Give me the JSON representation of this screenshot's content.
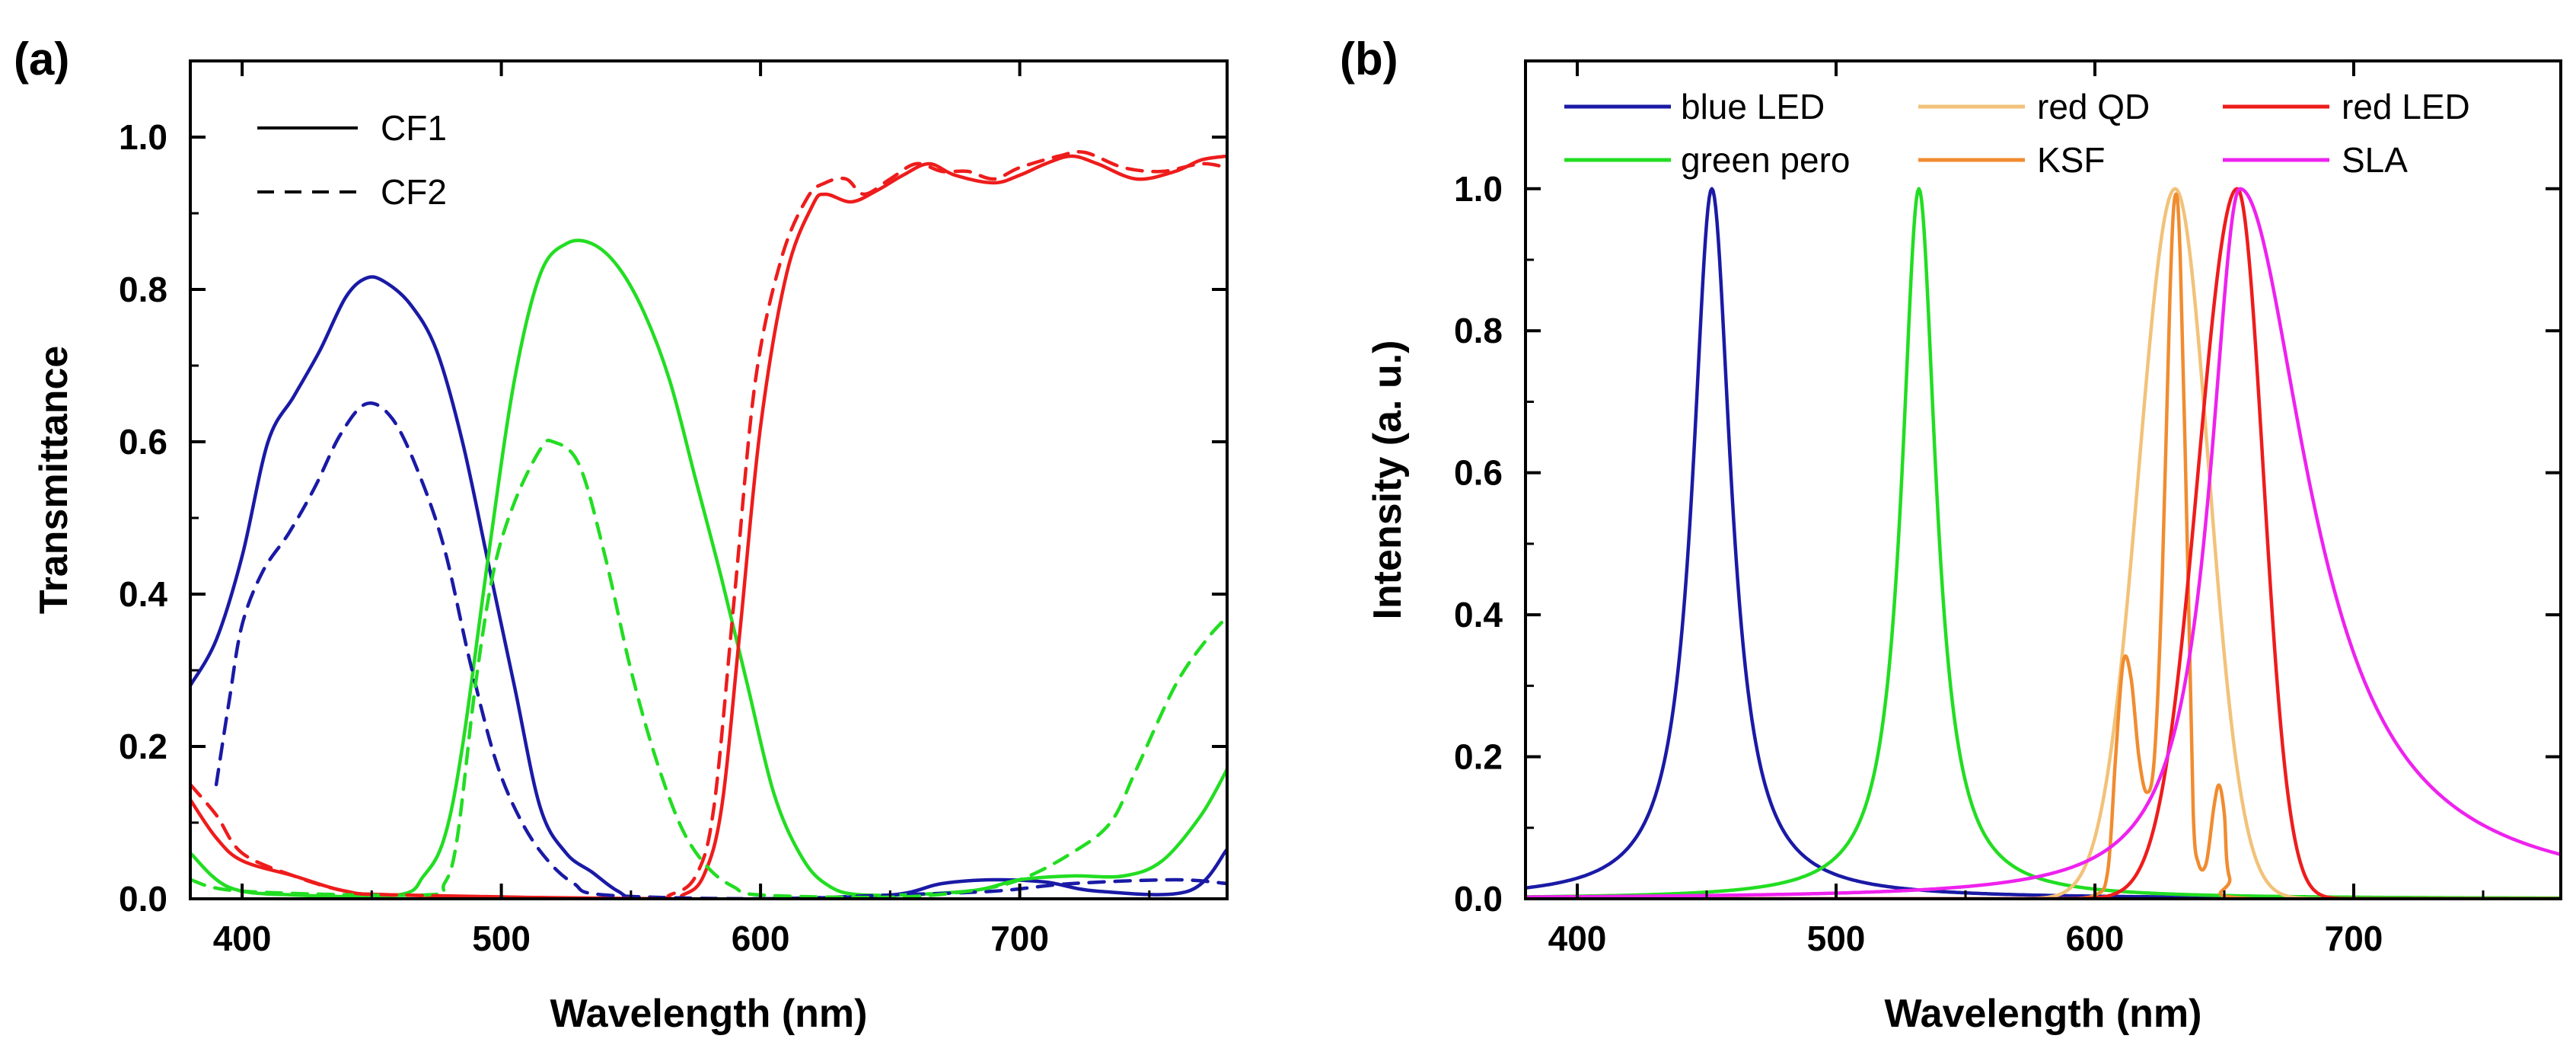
{
  "chart_data": [
    {
      "panel": "(a)",
      "type": "line",
      "xlabel": "Wavelength (nm)",
      "ylabel": "Transmittance",
      "xlim": [
        380,
        780
      ],
      "ylim": [
        0.0,
        1.1
      ],
      "xticks": [
        400,
        500,
        600,
        700
      ],
      "yticks": [
        0.0,
        0.2,
        0.4,
        0.6,
        0.8,
        1.0
      ],
      "xtick_labels": [
        "400",
        "500",
        "600",
        "700"
      ],
      "ytick_labels": [
        "0.0",
        "0.2",
        "0.4",
        "0.6",
        "0.8",
        "1.0"
      ],
      "legend_location": "top-left",
      "legend": [
        {
          "label": "CF1",
          "style": "solid"
        },
        {
          "label": "CF2",
          "style": "dashed"
        }
      ],
      "series": [
        {
          "name": "CF1 blue",
          "color": "#1a1aa6",
          "style": "solid",
          "points": [
            [
              380,
              0.28
            ],
            [
              390,
              0.34
            ],
            [
              400,
              0.45
            ],
            [
              410,
              0.6
            ],
            [
              420,
              0.66
            ],
            [
              430,
              0.72
            ],
            [
              440,
              0.79
            ],
            [
              448,
              0.815
            ],
            [
              455,
              0.81
            ],
            [
              465,
              0.78
            ],
            [
              475,
              0.72
            ],
            [
              485,
              0.6
            ],
            [
              495,
              0.44
            ],
            [
              505,
              0.28
            ],
            [
              515,
              0.12
            ],
            [
              525,
              0.06
            ],
            [
              535,
              0.035
            ],
            [
              545,
              0.01
            ],
            [
              555,
              0.0
            ],
            [
              600,
              0.0
            ],
            [
              650,
              0.005
            ],
            [
              670,
              0.02
            ],
            [
              690,
              0.025
            ],
            [
              710,
              0.022
            ],
            [
              730,
              0.01
            ],
            [
              765,
              0.01
            ],
            [
              780,
              0.065
            ]
          ]
        },
        {
          "name": "CF1 green",
          "color": "#22dd22",
          "style": "solid",
          "points": [
            [
              380,
              0.06
            ],
            [
              395,
              0.015
            ],
            [
              420,
              0.005
            ],
            [
              460,
              0.005
            ],
            [
              470,
              0.03
            ],
            [
              478,
              0.08
            ],
            [
              485,
              0.2
            ],
            [
              495,
              0.45
            ],
            [
              505,
              0.68
            ],
            [
              515,
              0.82
            ],
            [
              525,
              0.86
            ],
            [
              535,
              0.86
            ],
            [
              545,
              0.83
            ],
            [
              555,
              0.77
            ],
            [
              565,
              0.68
            ],
            [
              575,
              0.55
            ],
            [
              585,
              0.42
            ],
            [
              595,
              0.28
            ],
            [
              605,
              0.14
            ],
            [
              615,
              0.06
            ],
            [
              625,
              0.02
            ],
            [
              640,
              0.005
            ],
            [
              680,
              0.01
            ],
            [
              700,
              0.025
            ],
            [
              720,
              0.03
            ],
            [
              740,
              0.03
            ],
            [
              755,
              0.05
            ],
            [
              770,
              0.11
            ],
            [
              780,
              0.17
            ]
          ]
        },
        {
          "name": "CF1 red",
          "color": "#ee1c1c",
          "style": "solid",
          "points": [
            [
              380,
              0.13
            ],
            [
              390,
              0.08
            ],
            [
              400,
              0.05
            ],
            [
              420,
              0.03
            ],
            [
              440,
              0.01
            ],
            [
              460,
              0.005
            ],
            [
              560,
              0.0
            ],
            [
              570,
              0.005
            ],
            [
              578,
              0.03
            ],
            [
              585,
              0.12
            ],
            [
              592,
              0.35
            ],
            [
              600,
              0.62
            ],
            [
              610,
              0.82
            ],
            [
              620,
              0.91
            ],
            [
              625,
              0.925
            ],
            [
              635,
              0.915
            ],
            [
              645,
              0.93
            ],
            [
              655,
              0.95
            ],
            [
              665,
              0.965
            ],
            [
              675,
              0.95
            ],
            [
              690,
              0.94
            ],
            [
              700,
              0.95
            ],
            [
              710,
              0.965
            ],
            [
              720,
              0.975
            ],
            [
              730,
              0.965
            ],
            [
              745,
              0.945
            ],
            [
              760,
              0.955
            ],
            [
              770,
              0.97
            ],
            [
              780,
              0.975
            ]
          ]
        },
        {
          "name": "CF2 blue",
          "color": "#1a1aa6",
          "style": "dashed",
          "points": [
            [
              390,
              0.15
            ],
            [
              395,
              0.26
            ],
            [
              400,
              0.36
            ],
            [
              408,
              0.43
            ],
            [
              418,
              0.48
            ],
            [
              428,
              0.54
            ],
            [
              438,
              0.61
            ],
            [
              448,
              0.65
            ],
            [
              458,
              0.63
            ],
            [
              468,
              0.56
            ],
            [
              478,
              0.46
            ],
            [
              488,
              0.31
            ],
            [
              498,
              0.18
            ],
            [
              508,
              0.1
            ],
            [
              518,
              0.05
            ],
            [
              528,
              0.02
            ],
            [
              540,
              0.005
            ],
            [
              600,
              0.0
            ],
            [
              650,
              0.005
            ],
            [
              690,
              0.01
            ],
            [
              720,
              0.02
            ],
            [
              760,
              0.025
            ],
            [
              780,
              0.02
            ]
          ]
        },
        {
          "name": "CF2 green",
          "color": "#22dd22",
          "style": "dashed",
          "points": [
            [
              380,
              0.025
            ],
            [
              400,
              0.01
            ],
            [
              470,
              0.005
            ],
            [
              478,
              0.02
            ],
            [
              483,
              0.08
            ],
            [
              490,
              0.28
            ],
            [
              497,
              0.43
            ],
            [
              505,
              0.52
            ],
            [
              515,
              0.59
            ],
            [
              520,
              0.6
            ],
            [
              530,
              0.57
            ],
            [
              540,
              0.45
            ],
            [
              550,
              0.3
            ],
            [
              560,
              0.18
            ],
            [
              570,
              0.09
            ],
            [
              580,
              0.04
            ],
            [
              590,
              0.015
            ],
            [
              600,
              0.005
            ],
            [
              650,
              0.002
            ],
            [
              680,
              0.01
            ],
            [
              700,
              0.025
            ],
            [
              720,
              0.06
            ],
            [
              735,
              0.1
            ],
            [
              745,
              0.17
            ],
            [
              760,
              0.28
            ],
            [
              772,
              0.34
            ],
            [
              780,
              0.37
            ]
          ]
        },
        {
          "name": "CF2 red",
          "color": "#ee1c1c",
          "style": "dashed",
          "points": [
            [
              380,
              0.15
            ],
            [
              390,
              0.11
            ],
            [
              400,
              0.06
            ],
            [
              420,
              0.03
            ],
            [
              440,
              0.01
            ],
            [
              460,
              0.005
            ],
            [
              555,
              0.0
            ],
            [
              565,
              0.005
            ],
            [
              575,
              0.03
            ],
            [
              582,
              0.12
            ],
            [
              590,
              0.4
            ],
            [
              598,
              0.68
            ],
            [
              608,
              0.84
            ],
            [
              618,
              0.92
            ],
            [
              625,
              0.94
            ],
            [
              633,
              0.945
            ],
            [
              640,
              0.925
            ],
            [
              650,
              0.945
            ],
            [
              660,
              0.965
            ],
            [
              670,
              0.955
            ],
            [
              680,
              0.955
            ],
            [
              690,
              0.945
            ],
            [
              700,
              0.96
            ],
            [
              715,
              0.975
            ],
            [
              725,
              0.98
            ],
            [
              740,
              0.96
            ],
            [
              755,
              0.955
            ],
            [
              770,
              0.965
            ],
            [
              780,
              0.96
            ]
          ]
        }
      ]
    },
    {
      "panel": "(b)",
      "type": "line",
      "xlabel": "Wavelength (nm)",
      "ylabel": "Intensity (a. u.)",
      "xlim": [
        380,
        780
      ],
      "ylim": [
        0.0,
        1.18
      ],
      "xticks": [
        400,
        500,
        600,
        700
      ],
      "yticks": [
        0.0,
        0.2,
        0.4,
        0.6,
        0.8,
        1.0
      ],
      "xtick_labels": [
        "400",
        "500",
        "600",
        "700"
      ],
      "ytick_labels": [
        "0.0",
        "0.2",
        "0.4",
        "0.6",
        "0.8",
        "1.0"
      ],
      "legend_location": "top",
      "legend": [
        {
          "label": "blue LED",
          "color": "#1a1aa6"
        },
        {
          "label": "green pero",
          "color": "#22dd22"
        },
        {
          "label": "red QD",
          "color": "#f2c27a"
        },
        {
          "label": "KSF",
          "color": "#f08c30"
        },
        {
          "label": "red LED",
          "color": "#ee1c1c"
        },
        {
          "label": "SLA",
          "color": "#ee22ee"
        }
      ],
      "series": [
        {
          "name": "blue LED",
          "color": "#1a1aa6",
          "peak": 452,
          "gamma": 9,
          "amp": 1.0
        },
        {
          "name": "green pero",
          "color": "#22dd22",
          "peak": 532,
          "gamma": 8,
          "amp": 1.0
        },
        {
          "name": "red QD",
          "color": "#f2c27a",
          "peak": 631,
          "sigma_left": 14,
          "sigma_right": 13,
          "amp": 1.0
        },
        {
          "name": "KSF",
          "color": "#f08c30",
          "points": [
            [
              585,
              0.0
            ],
            [
              600,
              0.005
            ],
            [
              605,
              0.04
            ],
            [
              608,
              0.2
            ],
            [
              611,
              0.335
            ],
            [
              614,
              0.31
            ],
            [
              617,
              0.2
            ],
            [
              620,
              0.15
            ],
            [
              623,
              0.2
            ],
            [
              626,
              0.45
            ],
            [
              629,
              0.85
            ],
            [
              631,
              0.99
            ],
            [
              633,
              0.9
            ],
            [
              636,
              0.45
            ],
            [
              638,
              0.12
            ],
            [
              640,
              0.05
            ],
            [
              643,
              0.05
            ],
            [
              646,
              0.13
            ],
            [
              648,
              0.16
            ],
            [
              650,
              0.12
            ],
            [
              652,
              0.03
            ],
            [
              660,
              0.0
            ],
            [
              780,
              0.0
            ]
          ]
        },
        {
          "name": "red LED",
          "color": "#ee1c1c",
          "peak": 655,
          "sigma_left": 15,
          "sigma_right": 10,
          "amp": 1.0
        },
        {
          "name": "SLA",
          "color": "#ee22ee",
          "peak": 656,
          "gamma_left": 14,
          "gamma_right": 32,
          "amp": 1.0
        }
      ]
    }
  ]
}
